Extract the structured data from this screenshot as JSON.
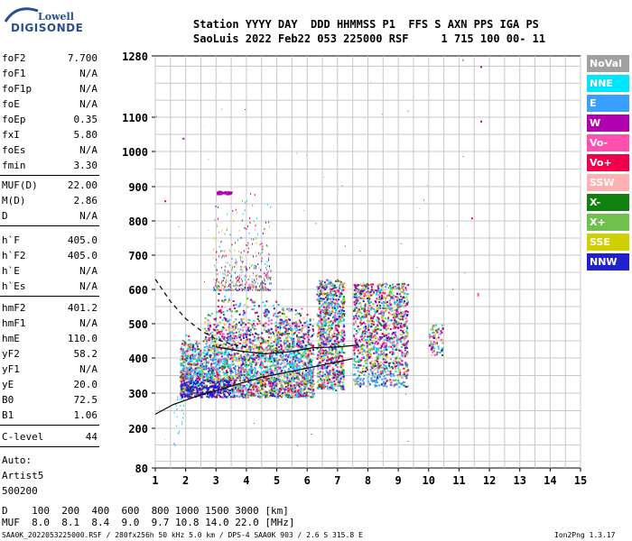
{
  "logo": {
    "top": "Lowell",
    "bottom": "DIGISONDE"
  },
  "header": {
    "line1": "Station YYYY DAY  DDD HHMMSS P1  FFS S AXN PPS IGA PS",
    "line2": "SaoLuis 2022 Feb22 053 225000 RSF     1 715 100 00- 11"
  },
  "params_a": [
    {
      "k": "foF2",
      "v": "7.700"
    },
    {
      "k": "foF1",
      "v": "N/A"
    },
    {
      "k": "foF1p",
      "v": "N/A"
    },
    {
      "k": "foE",
      "v": "N/A"
    },
    {
      "k": "foEp",
      "v": "0.35"
    },
    {
      "k": "fxI",
      "v": "5.80"
    },
    {
      "k": "foEs",
      "v": "N/A"
    },
    {
      "k": "fmin",
      "v": "3.30"
    }
  ],
  "params_b": [
    {
      "k": "MUF(D)",
      "v": "22.00"
    },
    {
      "k": "M(D)",
      "v": "2.86"
    },
    {
      "k": "D",
      "v": "N/A"
    }
  ],
  "params_c": [
    {
      "k": "h`F",
      "v": "405.0"
    },
    {
      "k": "h`F2",
      "v": "405.0"
    },
    {
      "k": "h`E",
      "v": "N/A"
    },
    {
      "k": "h`Es",
      "v": "N/A"
    }
  ],
  "params_d": [
    {
      "k": "hmF2",
      "v": "401.2"
    },
    {
      "k": "hmF1",
      "v": "N/A"
    },
    {
      "k": "hmE",
      "v": "110.0"
    },
    {
      "k": "yF2",
      "v": "58.2"
    },
    {
      "k": "yF1",
      "v": "N/A"
    },
    {
      "k": "yE",
      "v": "20.0"
    },
    {
      "k": "B0",
      "v": "72.5"
    },
    {
      "k": "B1",
      "v": "1.06"
    }
  ],
  "clevel": {
    "k": "C-level",
    "v": "44"
  },
  "auto": [
    "Auto:",
    "Artist5",
    "500200"
  ],
  "legend": [
    {
      "label": "NoVal",
      "color": "#a0a0a0"
    },
    {
      "label": "NNE",
      "color": "#00e5ff"
    },
    {
      "label": "E",
      "color": "#3aa0ff"
    },
    {
      "label": "W",
      "color": "#b000b0"
    },
    {
      "label": "Vo-",
      "color": "#ff50b0"
    },
    {
      "label": "Vo+",
      "color": "#f0004c"
    },
    {
      "label": "SSW",
      "color": "#ffb0b0"
    },
    {
      "label": "X-",
      "color": "#108010"
    },
    {
      "label": "X+",
      "color": "#70c050"
    },
    {
      "label": "SSE",
      "color": "#d0d000"
    },
    {
      "label": "NNW",
      "color": "#2020d0"
    }
  ],
  "bottom": {
    "d_line": "D    100  200  400  600  800 1000 1500 3000 [km]",
    "muf_line": "MUF  8.0  8.1  8.4  9.0  9.7 10.8 14.0 22.0 [MHz]"
  },
  "footer": {
    "left": "SAA0K_2022053225000.RSF / 280fx256h 50 kHz 5.0 km / DPS-4 SAA0K 903 / 2.6 S 315.8 E",
    "right": "Ion2Png 1.3.17"
  },
  "chart_data": {
    "type": "scatter",
    "xlim": [
      1,
      15
    ],
    "x_ticks": [
      1,
      2,
      3,
      4,
      5,
      6,
      7,
      8,
      9,
      10,
      11,
      12,
      13,
      14,
      15
    ],
    "y_ticks": [
      80,
      200,
      300,
      400,
      500,
      600,
      700,
      800,
      900,
      1000,
      1100,
      1280
    ],
    "ylim": [
      80,
      1280
    ],
    "y_scale": "nonlinear",
    "grid": true,
    "traces_x_min": 1.0,
    "traces_x_max": 7.5
  }
}
